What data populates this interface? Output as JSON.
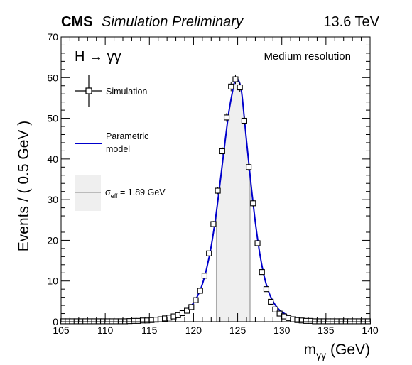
{
  "header": {
    "experiment": "CMS",
    "status": "Simulation Preliminary",
    "energy": "13.6 TeV"
  },
  "chart_data": {
    "type": "line",
    "process": {
      "base": "H",
      "arrow": "→",
      "products": "γγ"
    },
    "category_label": "Medium resolution",
    "xlabel": {
      "base": "m",
      "sub": "γγ",
      "unit": " (GeV)"
    },
    "ylabel": "Events / ( 0.5 GeV )",
    "xlim": [
      105,
      140
    ],
    "ylim": [
      0,
      70
    ],
    "x_ticks": [
      "105",
      "110",
      "115",
      "120",
      "125",
      "130",
      "135",
      "140"
    ],
    "y_ticks": [
      "0",
      "10",
      "20",
      "30",
      "40",
      "50",
      "60",
      "70"
    ],
    "grid": false,
    "legend_position": "left",
    "legend": {
      "simulation": "Simulation",
      "model_line1": "Parametric",
      "model_line2": "model",
      "sigma_symbol": "σ",
      "sigma_sub": "eff",
      "sigma_value": " = 1.89 GeV"
    },
    "band": {
      "low": 122.6,
      "high": 126.4
    },
    "colors": {
      "model": "#0000cc",
      "band_fill": "#efefef",
      "band_line": "#aaaaaa",
      "points": "#000000"
    },
    "series": [
      {
        "name": "Simulation",
        "style": "markers",
        "x": [
          105.25,
          105.75,
          106.25,
          106.75,
          107.25,
          107.75,
          108.25,
          108.75,
          109.25,
          109.75,
          110.25,
          110.75,
          111.25,
          111.75,
          112.25,
          112.75,
          113.25,
          113.75,
          114.25,
          114.75,
          115.25,
          115.75,
          116.25,
          116.75,
          117.25,
          117.75,
          118.25,
          118.75,
          119.25,
          119.75,
          120.25,
          120.75,
          121.25,
          121.75,
          122.25,
          122.75,
          123.25,
          123.75,
          124.25,
          124.75,
          125.25,
          125.75,
          126.25,
          126.75,
          127.25,
          127.75,
          128.25,
          128.75,
          129.25,
          129.75,
          130.25,
          130.75,
          131.25,
          131.75,
          132.25,
          132.75,
          133.25,
          133.75,
          134.25,
          134.75,
          135.25,
          135.75,
          136.25,
          136.75,
          137.25,
          137.75,
          138.25,
          138.75,
          139.25,
          139.75
        ],
        "y": [
          0.1,
          0.1,
          0.1,
          0.1,
          0.1,
          0.1,
          0.1,
          0.1,
          0.1,
          0.1,
          0.1,
          0.1,
          0.1,
          0.1,
          0.1,
          0.15,
          0.2,
          0.2,
          0.3,
          0.3,
          0.4,
          0.5,
          0.6,
          0.8,
          1.0,
          1.3,
          1.6,
          2.1,
          2.7,
          3.6,
          5.3,
          7.6,
          11.3,
          16.8,
          24.0,
          32.2,
          41.9,
          50.2,
          57.8,
          59.6,
          57.6,
          49.4,
          38.0,
          29.1,
          19.3,
          12.2,
          8.0,
          4.9,
          3.0,
          2.0,
          1.3,
          0.9,
          0.6,
          0.4,
          0.3,
          0.2,
          0.2,
          0.1,
          0.1,
          0.1,
          0.1,
          0.1,
          0.1,
          0.1,
          0.1,
          0.1,
          0.1,
          0.1,
          0.1,
          0.1
        ]
      },
      {
        "name": "Parametric model",
        "style": "line",
        "x": [
          105,
          110,
          114,
          116,
          117,
          118,
          118.5,
          119,
          119.5,
          120,
          120.5,
          121,
          121.5,
          122,
          122.5,
          123,
          123.5,
          124,
          124.5,
          124.75,
          125,
          125.25,
          125.5,
          126,
          126.5,
          127,
          127.5,
          128,
          128.5,
          129,
          129.5,
          130,
          131,
          132,
          133,
          135,
          138,
          140
        ],
        "y": [
          0.05,
          0.1,
          0.25,
          0.55,
          0.9,
          1.4,
          1.9,
          2.5,
          3.4,
          4.6,
          6.5,
          9.2,
          13.2,
          18.5,
          25.5,
          34.0,
          43.0,
          51.5,
          57.5,
          59.6,
          59.6,
          58.5,
          55.5,
          44.5,
          34.0,
          24.5,
          16.8,
          11.2,
          7.4,
          5.0,
          3.4,
          2.4,
          1.2,
          0.6,
          0.35,
          0.15,
          0.05,
          0.03
        ]
      }
    ]
  }
}
